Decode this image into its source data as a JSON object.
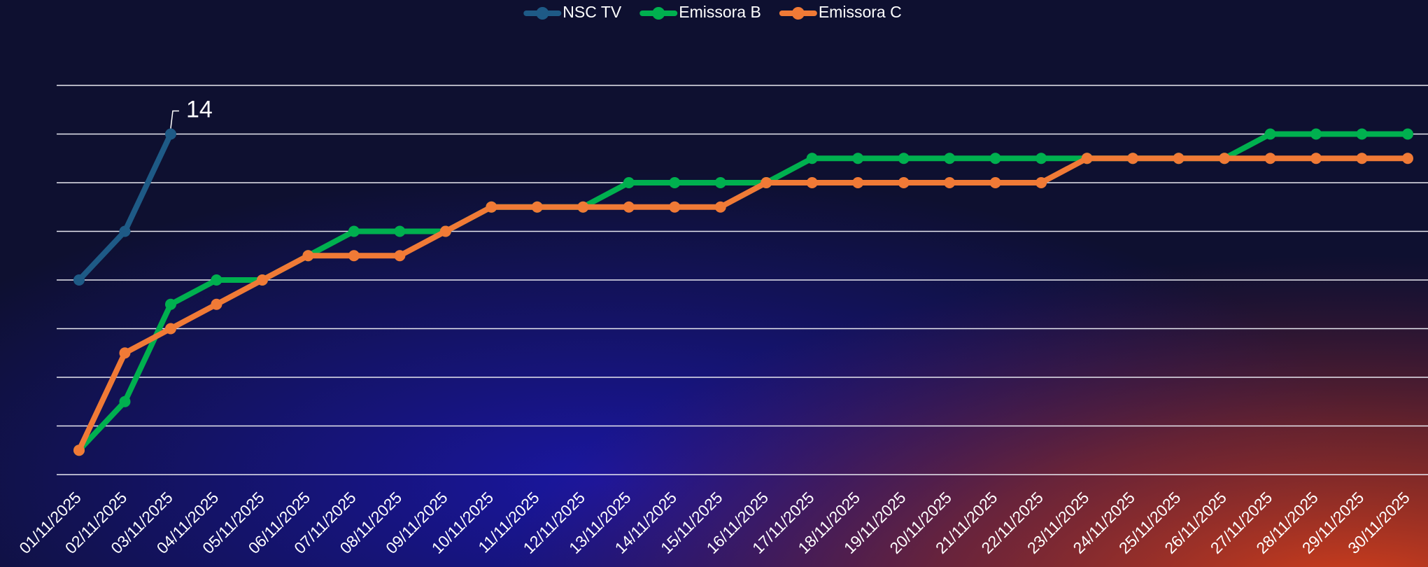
{
  "chart_data": {
    "type": "line",
    "categories": [
      "01/11/2025",
      "02/11/2025",
      "03/11/2025",
      "04/11/2025",
      "05/11/2025",
      "06/11/2025",
      "07/11/2025",
      "08/11/2025",
      "09/11/2025",
      "10/11/2025",
      "11/11/2025",
      "12/11/2025",
      "13/11/2025",
      "14/11/2025",
      "15/11/2025",
      "16/11/2025",
      "17/11/2025",
      "18/11/2025",
      "19/11/2025",
      "20/11/2025",
      "21/11/2025",
      "22/11/2025",
      "23/11/2025",
      "24/11/2025",
      "25/11/2025",
      "26/11/2025",
      "27/11/2025",
      "28/11/2025",
      "29/11/2025",
      "30/11/2025"
    ],
    "series": [
      {
        "name": "NSC TV",
        "color": "#1e5a86",
        "values": [
          8,
          10,
          14,
          null,
          null,
          null,
          null,
          null,
          null,
          null,
          null,
          null,
          null,
          null,
          null,
          null,
          null,
          null,
          null,
          null,
          null,
          null,
          null,
          null,
          null,
          null,
          null,
          null,
          null,
          null
        ]
      },
      {
        "name": "Emissora B",
        "color": "#00b04f",
        "values": [
          1,
          3,
          7,
          8,
          8,
          9,
          10,
          10,
          10,
          11,
          11,
          11,
          12,
          12,
          12,
          12,
          13,
          13,
          13,
          13,
          13,
          13,
          13,
          13,
          13,
          13,
          14,
          14,
          14,
          14
        ]
      },
      {
        "name": "Emissora C",
        "color": "#f07a36",
        "values": [
          1,
          5,
          6,
          7,
          8,
          9,
          9,
          9,
          10,
          11,
          11,
          11,
          11,
          11,
          11,
          12,
          12,
          12,
          12,
          12,
          12,
          12,
          13,
          13,
          13,
          13,
          13,
          13,
          13,
          13
        ]
      }
    ],
    "ylim": [
      0,
      16
    ],
    "yticks": [
      0,
      2,
      4,
      6,
      8,
      10,
      12,
      14,
      16
    ],
    "grid": true,
    "legend": "top"
  }
}
